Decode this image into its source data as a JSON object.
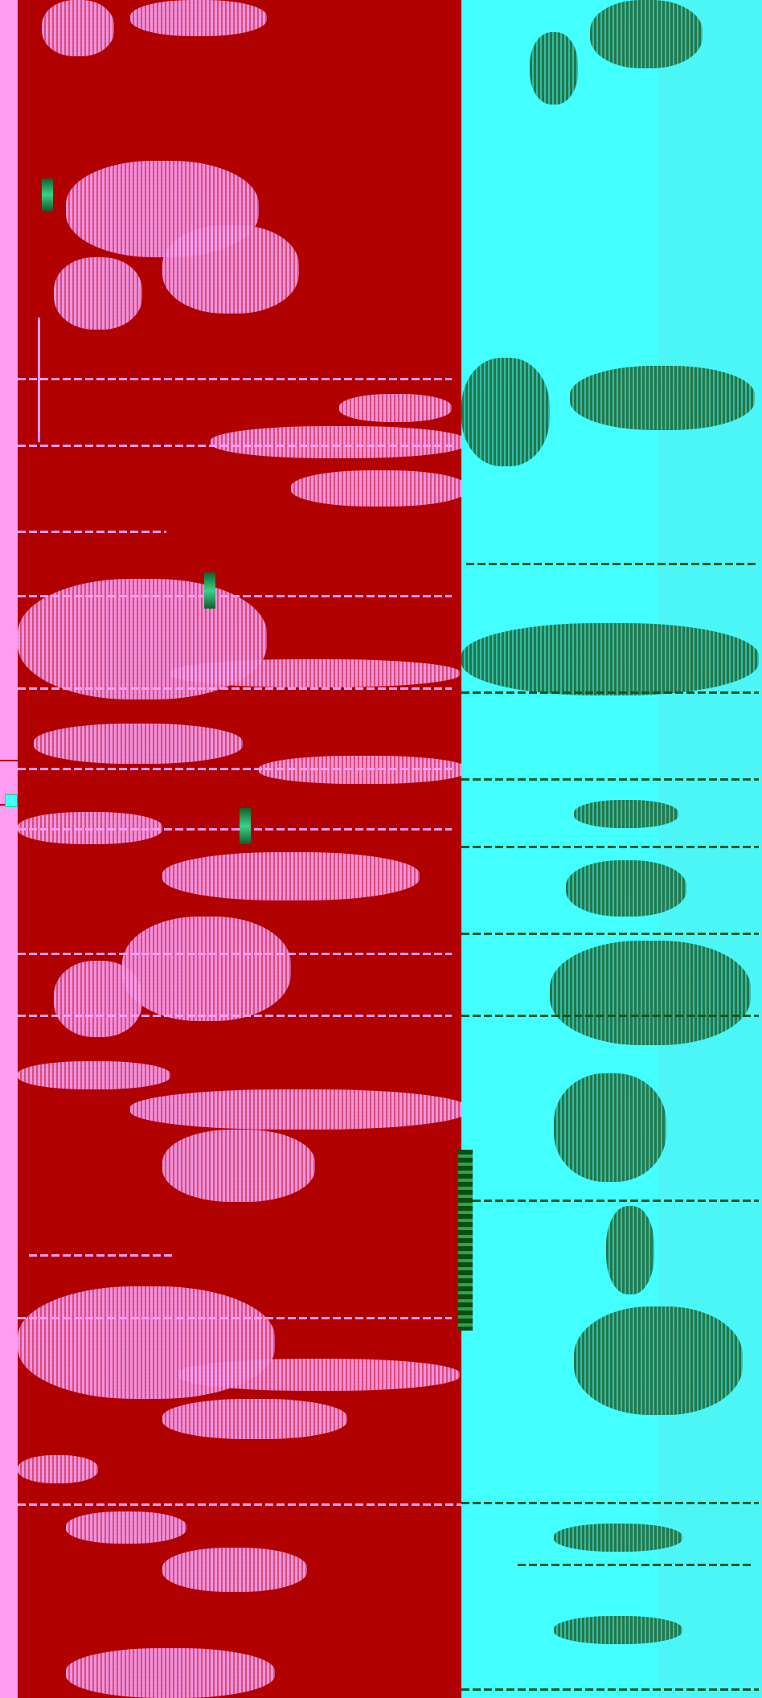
{
  "colors": {
    "main_background": "#b10000",
    "left_strip": "#ff9cf3",
    "side_panel": "#44ffff",
    "pink_noise": "#ff9cf3",
    "green_noise": "#1b6b3d"
  },
  "icons": [
    "glitch-glyph-icon",
    "cyan-square-icon"
  ]
}
